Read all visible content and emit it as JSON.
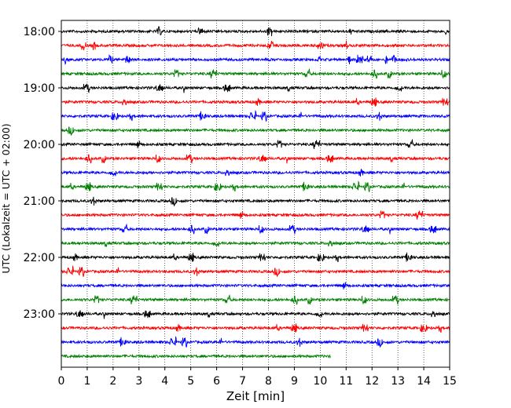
{
  "chart_data": {
    "type": "line",
    "title": "",
    "xlabel": "Zeit  [min]",
    "ylabel": "UTC (Lokalzeit = UTC + 02:00)",
    "xlim": [
      0,
      15
    ],
    "x_ticks": [
      "0",
      "1",
      "2",
      "3",
      "4",
      "5",
      "6",
      "7",
      "8",
      "9",
      "10",
      "11",
      "12",
      "13",
      "14",
      "15"
    ],
    "y_tick_labels": [
      "18:00",
      "19:00",
      "20:00",
      "21:00",
      "22:00",
      "23:00"
    ],
    "grid": "vertical dotted",
    "line_colors": [
      "#000000",
      "#ff0000",
      "#0000ff",
      "#008000"
    ],
    "traces": [
      {
        "start": "18:00",
        "end_min": 15
      },
      {
        "start": "18:15",
        "end_min": 15
      },
      {
        "start": "18:30",
        "end_min": 15
      },
      {
        "start": "18:45",
        "end_min": 15
      },
      {
        "start": "19:00",
        "end_min": 15
      },
      {
        "start": "19:15",
        "end_min": 15
      },
      {
        "start": "19:30",
        "end_min": 15
      },
      {
        "start": "19:45",
        "end_min": 15
      },
      {
        "start": "20:00",
        "end_min": 15
      },
      {
        "start": "20:15",
        "end_min": 15
      },
      {
        "start": "20:30",
        "end_min": 15
      },
      {
        "start": "20:45",
        "end_min": 15
      },
      {
        "start": "21:00",
        "end_min": 15
      },
      {
        "start": "21:15",
        "end_min": 15
      },
      {
        "start": "21:30",
        "end_min": 15
      },
      {
        "start": "21:45",
        "end_min": 15
      },
      {
        "start": "22:00",
        "end_min": 15
      },
      {
        "start": "22:15",
        "end_min": 15
      },
      {
        "start": "22:30",
        "end_min": 15
      },
      {
        "start": "22:45",
        "end_min": 15
      },
      {
        "start": "23:00",
        "end_min": 15
      },
      {
        "start": "23:15",
        "end_min": 15
      },
      {
        "start": "23:30",
        "end_min": 15
      },
      {
        "start": "23:45",
        "end_min": 10.4
      }
    ]
  }
}
